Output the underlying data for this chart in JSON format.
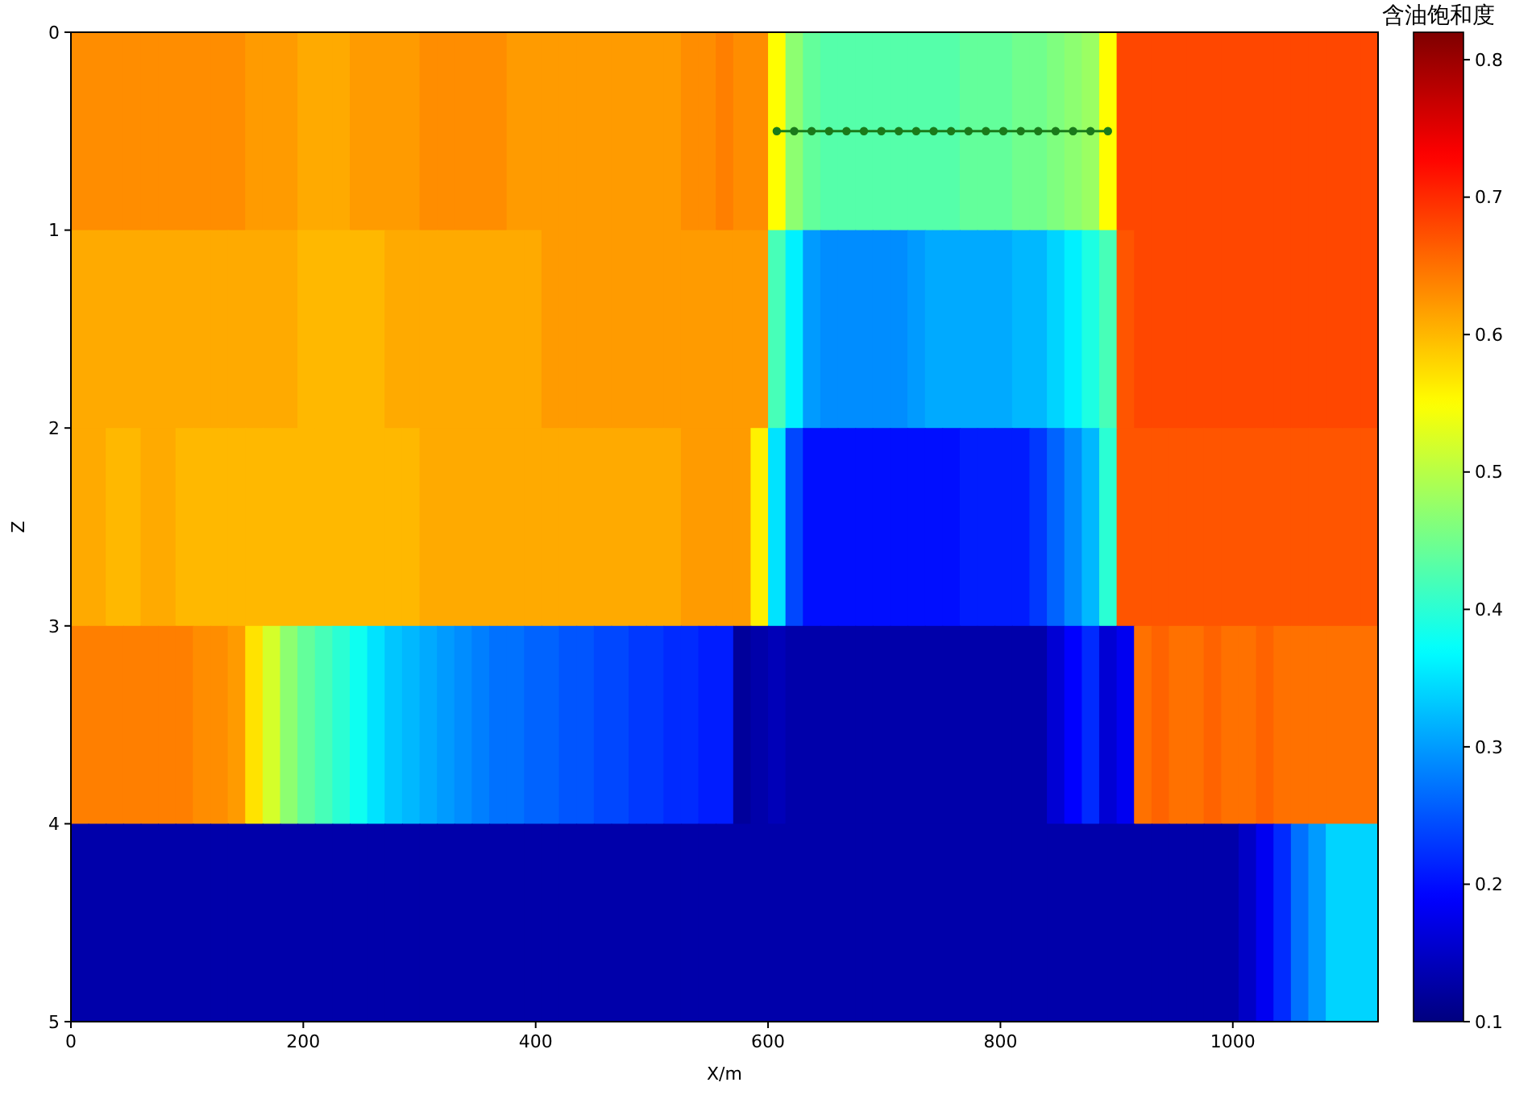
{
  "chart_data": {
    "type": "heatmap",
    "xlabel": "X/m",
    "ylabel": "Z",
    "clabel": "含油饱和度",
    "x": [
      7.5,
      22.5,
      37.5,
      52.5,
      67.5,
      82.5,
      97.5,
      112.5,
      127.5,
      142.5,
      157.5,
      172.5,
      187.5,
      202.5,
      217.5,
      232.5,
      247.5,
      262.5,
      277.5,
      292.5,
      307.5,
      322.5,
      337.5,
      352.5,
      367.5,
      382.5,
      397.5,
      412.5,
      427.5,
      442.5,
      457.5,
      472.5,
      487.5,
      502.5,
      517.5,
      532.5,
      547.5,
      562.5,
      577.5,
      592.5,
      607.5,
      622.5,
      637.5,
      652.5,
      667.5,
      682.5,
      697.5,
      712.5,
      727.5,
      742.5,
      757.5,
      772.5,
      787.5,
      802.5,
      817.5,
      832.5,
      847.5,
      862.5,
      877.5,
      892.5,
      907.5,
      922.5,
      937.5,
      952.5,
      967.5,
      982.5,
      997.5,
      1012.5,
      1027.5,
      1042.5,
      1057.5,
      1072.5,
      1087.5,
      1102.5,
      1117.5
    ],
    "xlim": [
      0,
      1125
    ],
    "xticks": [
      0,
      200,
      400,
      600,
      800,
      1000
    ],
    "ylim": [
      5,
      0
    ],
    "yticks": [
      0,
      1,
      2,
      3,
      4,
      5
    ],
    "clim": [
      0.1,
      0.82
    ],
    "cticks": [
      0.1,
      0.2,
      0.3,
      0.4,
      0.5,
      0.6,
      0.7,
      0.8
    ],
    "cells": [
      [
        0.63,
        0.63,
        0.63,
        0.63,
        0.63,
        0.63,
        0.63,
        0.63,
        0.63,
        0.63,
        0.62,
        0.62,
        0.62,
        0.61,
        0.61,
        0.61,
        0.62,
        0.62,
        0.62,
        0.62,
        0.63,
        0.63,
        0.63,
        0.63,
        0.63,
        0.62,
        0.62,
        0.62,
        0.62,
        0.62,
        0.62,
        0.62,
        0.62,
        0.62,
        0.62,
        0.63,
        0.63,
        0.64,
        0.63,
        0.63,
        0.55,
        0.47,
        0.44,
        0.43,
        0.43,
        0.43,
        0.43,
        0.43,
        0.43,
        0.43,
        0.43,
        0.44,
        0.44,
        0.44,
        0.45,
        0.45,
        0.46,
        0.47,
        0.48,
        0.55,
        0.68,
        0.68,
        0.68,
        0.68,
        0.68,
        0.68,
        0.68,
        0.68,
        0.68,
        0.68,
        0.68,
        0.68,
        0.68,
        0.68,
        0.68
      ],
      [
        0.61,
        0.61,
        0.61,
        0.61,
        0.61,
        0.61,
        0.61,
        0.61,
        0.61,
        0.61,
        0.61,
        0.61,
        0.61,
        0.6,
        0.6,
        0.6,
        0.6,
        0.6,
        0.61,
        0.61,
        0.61,
        0.61,
        0.61,
        0.61,
        0.61,
        0.61,
        0.61,
        0.62,
        0.62,
        0.62,
        0.62,
        0.62,
        0.62,
        0.62,
        0.62,
        0.62,
        0.62,
        0.62,
        0.62,
        0.62,
        0.42,
        0.36,
        0.3,
        0.29,
        0.29,
        0.29,
        0.29,
        0.29,
        0.3,
        0.31,
        0.31,
        0.31,
        0.31,
        0.31,
        0.32,
        0.32,
        0.34,
        0.36,
        0.39,
        0.42,
        0.67,
        0.68,
        0.68,
        0.68,
        0.68,
        0.68,
        0.68,
        0.68,
        0.68,
        0.68,
        0.68,
        0.68,
        0.68,
        0.68,
        0.68
      ],
      [
        0.61,
        0.61,
        0.6,
        0.6,
        0.61,
        0.61,
        0.6,
        0.6,
        0.6,
        0.6,
        0.6,
        0.6,
        0.6,
        0.6,
        0.6,
        0.6,
        0.6,
        0.6,
        0.6,
        0.6,
        0.61,
        0.61,
        0.61,
        0.61,
        0.61,
        0.61,
        0.61,
        0.61,
        0.61,
        0.61,
        0.61,
        0.61,
        0.61,
        0.61,
        0.61,
        0.62,
        0.62,
        0.62,
        0.62,
        0.56,
        0.35,
        0.24,
        0.2,
        0.2,
        0.2,
        0.2,
        0.2,
        0.2,
        0.2,
        0.2,
        0.2,
        0.21,
        0.21,
        0.21,
        0.21,
        0.23,
        0.26,
        0.29,
        0.32,
        0.4,
        0.67,
        0.67,
        0.67,
        0.67,
        0.67,
        0.67,
        0.67,
        0.67,
        0.67,
        0.67,
        0.67,
        0.67,
        0.67,
        0.67,
        0.67
      ],
      [
        0.64,
        0.64,
        0.64,
        0.64,
        0.64,
        0.64,
        0.64,
        0.63,
        0.63,
        0.62,
        0.57,
        0.52,
        0.47,
        0.44,
        0.42,
        0.4,
        0.38,
        0.35,
        0.33,
        0.32,
        0.31,
        0.3,
        0.29,
        0.28,
        0.27,
        0.27,
        0.26,
        0.26,
        0.25,
        0.25,
        0.24,
        0.24,
        0.23,
        0.23,
        0.22,
        0.22,
        0.21,
        0.21,
        0.12,
        0.13,
        0.14,
        0.13,
        0.13,
        0.13,
        0.13,
        0.13,
        0.13,
        0.13,
        0.13,
        0.13,
        0.13,
        0.13,
        0.13,
        0.13,
        0.13,
        0.13,
        0.16,
        0.19,
        0.22,
        0.16,
        0.18,
        0.65,
        0.66,
        0.65,
        0.65,
        0.66,
        0.65,
        0.65,
        0.66,
        0.65,
        0.65,
        0.65,
        0.65,
        0.65,
        0.65
      ],
      [
        0.13,
        0.13,
        0.13,
        0.13,
        0.13,
        0.13,
        0.13,
        0.13,
        0.13,
        0.13,
        0.13,
        0.13,
        0.13,
        0.13,
        0.13,
        0.13,
        0.13,
        0.13,
        0.13,
        0.13,
        0.13,
        0.13,
        0.13,
        0.13,
        0.13,
        0.13,
        0.13,
        0.13,
        0.13,
        0.13,
        0.13,
        0.13,
        0.13,
        0.13,
        0.13,
        0.13,
        0.13,
        0.13,
        0.13,
        0.13,
        0.13,
        0.13,
        0.13,
        0.13,
        0.13,
        0.13,
        0.13,
        0.13,
        0.13,
        0.13,
        0.13,
        0.13,
        0.13,
        0.13,
        0.13,
        0.13,
        0.13,
        0.13,
        0.13,
        0.13,
        0.13,
        0.13,
        0.13,
        0.13,
        0.13,
        0.13,
        0.13,
        0.15,
        0.18,
        0.22,
        0.27,
        0.3,
        0.34,
        0.34,
        0.34
      ]
    ],
    "series": [
      {
        "type": "line",
        "color": "#1a7a1a",
        "x": [
          607.5,
          622.5,
          637.5,
          652.5,
          667.5,
          682.5,
          697.5,
          712.5,
          727.5,
          742.5,
          757.5,
          772.5,
          787.5,
          802.5,
          817.5,
          832.5,
          847.5,
          862.5,
          877.5,
          892.5
        ],
        "values": [
          0.5,
          0.5,
          0.5,
          0.5,
          0.5,
          0.5,
          0.5,
          0.5,
          0.5,
          0.5,
          0.5,
          0.5,
          0.5,
          0.5,
          0.5,
          0.5,
          0.5,
          0.5,
          0.5,
          0.5
        ]
      }
    ],
    "marker": "circle"
  }
}
